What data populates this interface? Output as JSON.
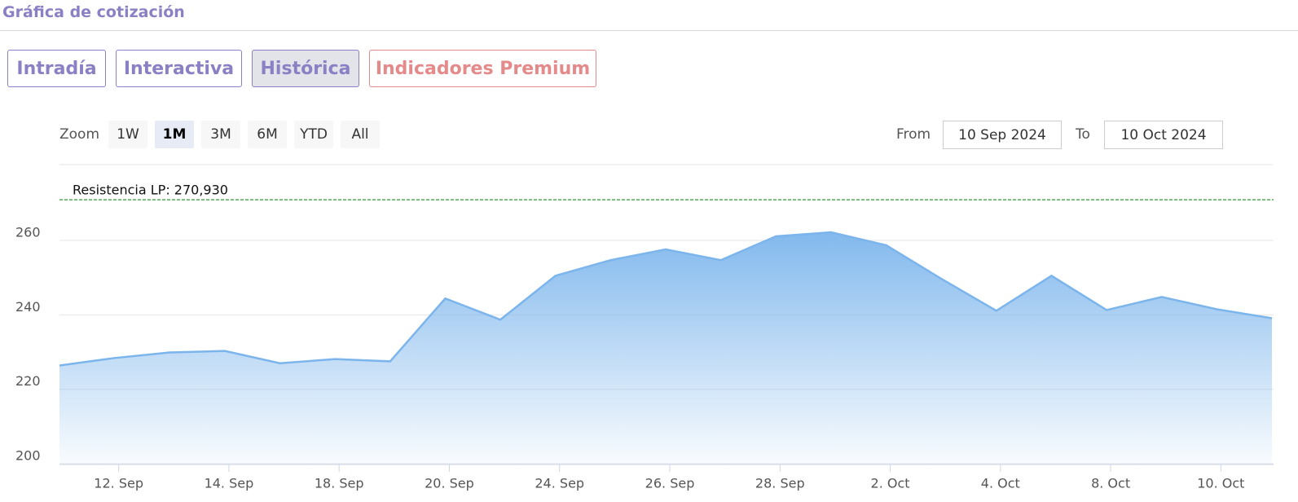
{
  "header": {
    "title": "Gráfica de cotización"
  },
  "tabs": {
    "items": [
      "Intradía",
      "Interactiva",
      "Histórica",
      "Indicadores Premium"
    ],
    "active": 2
  },
  "toolbar": {
    "zoom_label": "Zoom",
    "zoom_buttons": [
      "1W",
      "1M",
      "3M",
      "6M",
      "YTD",
      "All"
    ],
    "selected_zoom": 1,
    "from_label": "From",
    "from": "10 Sep 2024",
    "to_label": "To",
    "to": "10 Oct 2024"
  },
  "chart_data": {
    "type": "area",
    "categories": [
      null,
      "12. Sep",
      null,
      "14. Sep",
      null,
      "18. Sep",
      null,
      "20. Sep",
      null,
      "24. Sep",
      null,
      "26. Sep",
      null,
      "28. Sep",
      null,
      "2. Oct",
      null,
      "4. Oct",
      null,
      "8. Oct",
      null,
      "10. Oct",
      null
    ],
    "values": [
      226.4,
      228.4,
      229.9,
      230.3,
      227.0,
      228.1,
      227.5,
      244.4,
      238.7,
      250.5,
      254.7,
      257.6,
      254.7,
      261.1,
      262.2,
      258.7,
      249.7,
      241.1,
      250.5,
      241.3,
      244.8,
      241.5,
      239.1
    ],
    "color": "#7cb5ec",
    "ylim": [
      200,
      280
    ],
    "yticks": [
      200,
      220,
      240,
      260
    ],
    "grid": true,
    "resistance": {
      "label": "Resistencia LP: 270,930",
      "value": 270.93,
      "color": "#2e9a2e"
    }
  }
}
